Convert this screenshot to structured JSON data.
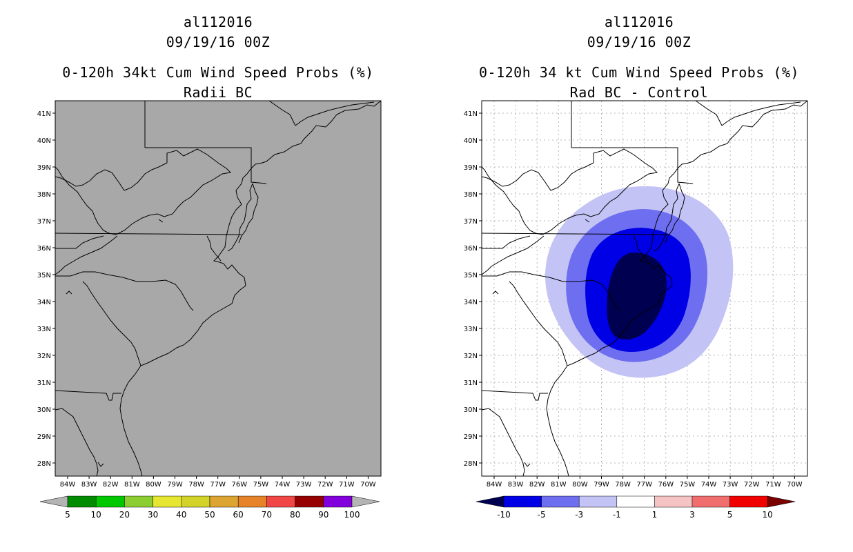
{
  "left_panel": {
    "title_line1": "al112016",
    "title_line2": "09/19/16 00Z",
    "title_line3": "0-120h 34kt Cum Wind Speed Probs (%)",
    "title_line4": "Radii BC",
    "fill_color": "#a8a8a8",
    "lat_labels": [
      "41N",
      "40N",
      "39N",
      "38N",
      "37N",
      "36N",
      "35N",
      "34N",
      "33N",
      "32N",
      "31N",
      "30N",
      "29N",
      "28N"
    ],
    "lon_labels": [
      "84W",
      "83W",
      "82W",
      "81W",
      "80W",
      "79W",
      "78W",
      "77W",
      "76W",
      "75W",
      "74W",
      "73W",
      "72W",
      "71W",
      "70W"
    ],
    "colorbar": {
      "labels": [
        "5",
        "10",
        "20",
        "30",
        "40",
        "50",
        "60",
        "70",
        "80",
        "90",
        "100"
      ],
      "colors": [
        "#008c00",
        "#00c800",
        "#8ccd32",
        "#e6e632",
        "#d2d228",
        "#dca532",
        "#e68228",
        "#f04646",
        "#960000",
        "#8200dc"
      ],
      "end_color_low": "#b4b4b4",
      "end_color_high": "#b4b4b4"
    }
  },
  "right_panel": {
    "title_line1": "al112016",
    "title_line2": "09/19/16 00Z",
    "title_line3": "0-120h 34 kt Cum Wind Speed Probs (%)",
    "title_line4": "Rad BC - Control",
    "lat_labels": [
      "41N",
      "40N",
      "39N",
      "38N",
      "37N",
      "36N",
      "35N",
      "34N",
      "33N",
      "32N",
      "31N",
      "30N",
      "29N",
      "28N"
    ],
    "lon_labels": [
      "84W",
      "83W",
      "82W",
      "81W",
      "80W",
      "79W",
      "78W",
      "77W",
      "76W",
      "75W",
      "74W",
      "73W",
      "72W",
      "71W",
      "70W"
    ],
    "contour_colors": {
      "lt_minus_10": "#000050",
      "minus_10_to_minus_5": "#0000e6",
      "minus_5_to_minus_3": "#6e6ef0",
      "minus_3_to_minus_1": "#c3c3f5"
    },
    "colorbar": {
      "labels": [
        "-10",
        "-5",
        "-3",
        "-1",
        "1",
        "3",
        "5",
        "10"
      ],
      "colors": [
        "#0000e6",
        "#6e6ef0",
        "#c3c3f5",
        "#ffffff",
        "#f5c3c3",
        "#f06e6e",
        "#f00000"
      ],
      "end_color_low": "#000050",
      "end_color_high": "#780000"
    }
  }
}
